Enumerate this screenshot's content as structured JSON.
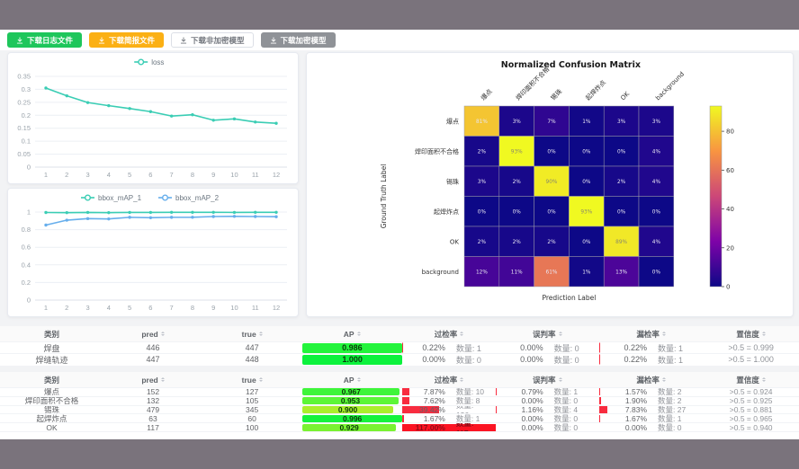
{
  "window": {
    "topbar_color": "#7a737c",
    "footer_color": "#7a737c",
    "page_bg": "#f2f3f5"
  },
  "toolbar": {
    "buttons": [
      {
        "id": "download-log-button",
        "label": "下载日志文件",
        "bg": "#1ec65b",
        "color": "#ffffff",
        "border": ""
      },
      {
        "id": "download-brief-button",
        "label": "下载简报文件",
        "bg": "#fbb014",
        "color": "#ffffff",
        "border": ""
      },
      {
        "id": "download-plain-model-button",
        "label": "下载非加密模型",
        "bg": "#ffffff",
        "color": "#72767d",
        "border": "1px solid #dcdfe6"
      },
      {
        "id": "download-encrypted-model-button",
        "label": "下载加密模型",
        "bg": "#8f9297",
        "color": "#ffffff",
        "border": ""
      }
    ]
  },
  "chart_data": [
    {
      "type": "line",
      "name": "loss-chart",
      "x": [
        1,
        2,
        3,
        4,
        5,
        6,
        7,
        8,
        9,
        10,
        11,
        12
      ],
      "series": [
        {
          "name": "loss",
          "color": "#3acdb4",
          "values": [
            0.305,
            0.275,
            0.249,
            0.237,
            0.226,
            0.214,
            0.197,
            0.202,
            0.181,
            0.186,
            0.174,
            0.169
          ]
        }
      ],
      "ylim": [
        0,
        0.35
      ],
      "yticks": [
        0,
        0.05,
        0.1,
        0.15,
        0.2,
        0.25,
        0.3,
        0.35
      ],
      "grid": true,
      "legend_position": "top-center"
    },
    {
      "type": "line",
      "name": "map-chart",
      "x": [
        1,
        2,
        3,
        4,
        5,
        6,
        7,
        8,
        9,
        10,
        11,
        12
      ],
      "series": [
        {
          "name": "bbox_mAP_1",
          "color": "#3acdb4",
          "values": [
            0.995,
            0.993,
            0.996,
            0.993,
            0.996,
            0.996,
            0.997,
            0.997,
            0.997,
            0.996,
            0.997,
            0.997
          ]
        },
        {
          "name": "bbox_mAP_2",
          "color": "#66aeec",
          "values": [
            0.852,
            0.908,
            0.925,
            0.922,
            0.94,
            0.936,
            0.94,
            0.941,
            0.949,
            0.951,
            0.949,
            0.947
          ]
        }
      ],
      "ylim": [
        0,
        1
      ],
      "yticks": [
        0,
        0.2,
        0.4,
        0.6,
        0.8,
        1
      ],
      "grid": true,
      "legend_position": "top-center"
    },
    {
      "type": "heatmap",
      "name": "confusion-matrix",
      "title": "Normalized Confusion Matrix",
      "xlabel": "Prediction Label",
      "ylabel": "Ground Truth Label",
      "labels": [
        "爆点",
        "焊印面积不合格",
        "锡珠",
        "起焊炸点",
        "OK",
        "background"
      ],
      "matrix_percent": [
        [
          81,
          3,
          7,
          1,
          3,
          3
        ],
        [
          2,
          93,
          0,
          0,
          0,
          4
        ],
        [
          3,
          2,
          90,
          0,
          2,
          4
        ],
        [
          0,
          0,
          0,
          93,
          0,
          0
        ],
        [
          2,
          2,
          2,
          0,
          89,
          4
        ],
        [
          12,
          11,
          61,
          1,
          13,
          0
        ]
      ],
      "scale_max": 93,
      "colorbar_ticks": [
        0,
        20,
        40,
        60,
        80
      ],
      "colormap": "plasma"
    }
  ],
  "tables": {
    "headers": [
      {
        "label": "类别",
        "sortable": false
      },
      {
        "label": "pred",
        "sortable": true
      },
      {
        "label": "true",
        "sortable": true
      },
      {
        "label": "AP",
        "sortable": true
      },
      {
        "label": "过检率",
        "sortable": true
      },
      {
        "label": "误判率",
        "sortable": true
      },
      {
        "label": "漏检率",
        "sortable": true
      },
      {
        "label": "置信度",
        "sortable": true
      }
    ],
    "count_label": "数量",
    "bar_red": "#f82c3f",
    "bar_red_full": "#fb1423",
    "table1_rows": [
      {
        "label": "焊盘",
        "pred": "446",
        "gt": "447",
        "ap": 0.986,
        "ap_text": "0.986",
        "ap_color": "#23f43c",
        "over_pct": "0.22%",
        "over_n": "1",
        "over_w": 0.22,
        "mis_pct": "0.00%",
        "mis_n": "0",
        "mis_w": 0,
        "miss_pct": "0.22%",
        "miss_n": "1",
        "miss_w": 0.22,
        "conf": ">0.5 = 0.999"
      },
      {
        "label": "焊缝轨迹",
        "pred": "447",
        "gt": "448",
        "ap": 1.0,
        "ap_text": "1.000",
        "ap_color": "#0cf23d",
        "over_pct": "0.00%",
        "over_n": "0",
        "over_w": 0,
        "mis_pct": "0.00%",
        "mis_n": "0",
        "mis_w": 0,
        "miss_pct": "0.22%",
        "miss_n": "1",
        "miss_w": 0.22,
        "conf": ">0.5 = 1.000"
      }
    ],
    "table2_rows": [
      {
        "label": "爆点",
        "pred": "152",
        "gt": "127",
        "ap": 0.967,
        "ap_text": "0.967",
        "ap_color": "#3ff53a",
        "over_pct": "7.87%",
        "over_n": "10",
        "over_w": 7.87,
        "mis_pct": "0.79%",
        "mis_n": "1",
        "mis_w": 0.79,
        "miss_pct": "1.57%",
        "miss_n": "2",
        "miss_w": 1.57,
        "conf": ">0.5 = 0.924"
      },
      {
        "label": "焊印面积不合格",
        "pred": "132",
        "gt": "105",
        "ap": 0.953,
        "ap_text": "0.953",
        "ap_color": "#5cf637",
        "over_pct": "7.62%",
        "over_n": "8",
        "over_w": 7.62,
        "mis_pct": "0.00%",
        "mis_n": "0",
        "mis_w": 0,
        "miss_pct": "1.90%",
        "miss_n": "2",
        "miss_w": 1.9,
        "conf": ">0.5 = 0.925"
      },
      {
        "label": "锡珠",
        "pred": "479",
        "gt": "345",
        "ap": 0.9,
        "ap_text": "0.900",
        "ap_color": "#abef2c",
        "over_pct": "39.42%",
        "over_n": "136",
        "over_w": 39.42,
        "mis_pct": "1.16%",
        "mis_n": "4",
        "mis_w": 1.16,
        "miss_pct": "7.83%",
        "miss_n": "27",
        "miss_w": 7.83,
        "conf": ">0.5 = 0.881"
      },
      {
        "label": "起焊炸点",
        "pred": "63",
        "gt": "60",
        "ap": 0.996,
        "ap_text": "0.996",
        "ap_color": "#15f33c",
        "over_pct": "1.67%",
        "over_n": "1",
        "over_w": 1.67,
        "mis_pct": "0.00%",
        "mis_n": "0",
        "mis_w": 0,
        "miss_pct": "1.67%",
        "miss_n": "1",
        "miss_w": 1.67,
        "conf": ">0.5 = 0.965"
      },
      {
        "label": "OK",
        "pred": "117",
        "gt": "100",
        "ap": 0.929,
        "ap_text": "0.929",
        "ap_color": "#79f231",
        "over_pct": "117.00%",
        "over_n": "117",
        "over_w": 117,
        "mis_pct": "0.00%",
        "mis_n": "0",
        "mis_w": 0,
        "miss_pct": "0.00%",
        "miss_n": "0",
        "miss_w": 0,
        "conf": ">0.5 = 0.940"
      }
    ]
  }
}
